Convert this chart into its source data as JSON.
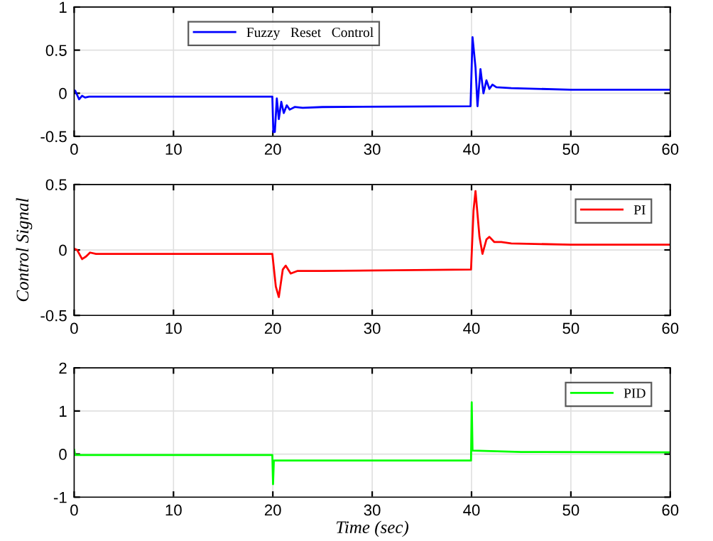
{
  "chart_data": [
    {
      "type": "line",
      "xlim": [
        0,
        60
      ],
      "xticks": [
        0,
        10,
        20,
        30,
        40,
        50,
        60
      ],
      "ylim": [
        -0.5,
        1
      ],
      "yticks": [
        -0.5,
        0,
        0.5,
        1
      ],
      "grid": true,
      "legend": "top left",
      "series": [
        {
          "name": "Fuzzy   Reset   Control",
          "color": "#0000ff",
          "x": [
            0,
            0.1,
            0.3,
            0.5,
            0.8,
            1.1,
            1.5,
            2,
            19.95,
            20.05,
            20.2,
            20.4,
            20.6,
            20.85,
            21.1,
            21.4,
            21.7,
            22.2,
            23,
            25,
            39.9,
            40.1,
            40.4,
            40.6,
            40.9,
            41.2,
            41.5,
            41.8,
            42.1,
            42.5,
            44,
            50,
            60
          ],
          "values": [
            0.03,
            0.03,
            -0.02,
            -0.07,
            -0.03,
            -0.05,
            -0.04,
            -0.04,
            -0.04,
            -0.45,
            -0.45,
            -0.06,
            -0.3,
            -0.1,
            -0.23,
            -0.14,
            -0.19,
            -0.16,
            -0.17,
            -0.16,
            -0.15,
            0.65,
            0.3,
            -0.15,
            0.28,
            0.0,
            0.15,
            0.05,
            0.1,
            0.07,
            0.06,
            0.04,
            0.04
          ]
        }
      ]
    },
    {
      "type": "line",
      "xlim": [
        0,
        60
      ],
      "xticks": [
        0,
        10,
        20,
        30,
        40,
        50,
        60
      ],
      "ylim": [
        -0.5,
        0.5
      ],
      "yticks": [
        -0.5,
        0,
        0.5
      ],
      "grid": true,
      "legend": "top right",
      "ylabel": "Control Signal",
      "series": [
        {
          "name": "PI",
          "color": "#ff0000",
          "x": [
            0,
            0.3,
            0.8,
            1.2,
            1.6,
            2.2,
            19.95,
            20.3,
            20.6,
            21,
            21.3,
            21.8,
            22.5,
            25,
            39.95,
            40.2,
            40.4,
            40.8,
            41.1,
            41.5,
            41.8,
            42.3,
            43,
            44,
            50,
            60
          ],
          "values": [
            0.01,
            0.0,
            -0.07,
            -0.05,
            -0.02,
            -0.03,
            -0.03,
            -0.28,
            -0.36,
            -0.15,
            -0.12,
            -0.18,
            -0.16,
            -0.16,
            -0.15,
            0.3,
            0.45,
            0.1,
            -0.03,
            0.08,
            0.1,
            0.06,
            0.06,
            0.05,
            0.04,
            0.04
          ]
        }
      ]
    },
    {
      "type": "line",
      "xlim": [
        0,
        60
      ],
      "xticks": [
        0,
        10,
        20,
        30,
        40,
        50,
        60
      ],
      "ylim": [
        -1,
        2
      ],
      "yticks": [
        -1,
        0,
        1,
        2
      ],
      "grid": true,
      "legend": "top right",
      "xlabel": "Time (sec)",
      "series": [
        {
          "name": "PID",
          "color": "#00ff00",
          "x": [
            0,
            0.1,
            19.95,
            20.02,
            20.1,
            39.95,
            40.02,
            40.1,
            45,
            60
          ],
          "values": [
            0.1,
            -0.02,
            -0.02,
            -0.7,
            -0.15,
            -0.15,
            1.2,
            0.08,
            0.05,
            0.04
          ]
        }
      ]
    }
  ]
}
